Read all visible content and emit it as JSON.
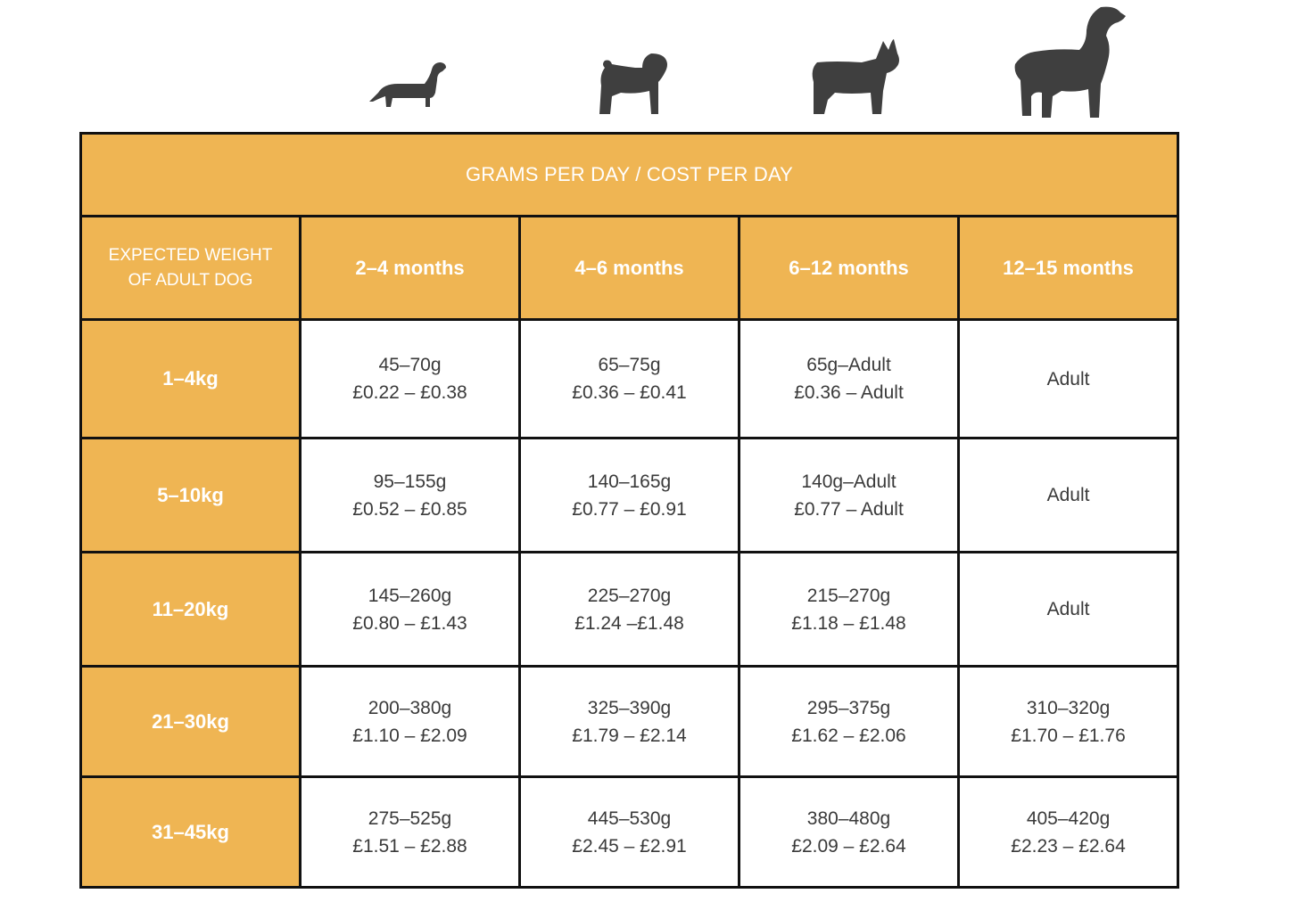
{
  "colors": {
    "accent": "#efb553",
    "border": "#111111",
    "icon": "#3f3f3f",
    "text": "#3a3a3a"
  },
  "icons": [
    "dachshund-icon",
    "pug-icon",
    "french-bulldog-icon",
    "spaniel-icon"
  ],
  "table": {
    "title": "GRAMS PER DAY / COST PER DAY",
    "weight_header_line1": "EXPECTED WEIGHT",
    "weight_header_line2": "OF ADULT DOG",
    "age_headers": [
      "2–4 months",
      "4–6 months",
      "6–12 months",
      "12–15 months"
    ],
    "rows": [
      {
        "weight": "1–4kg",
        "cells": [
          {
            "grams": "45–70g",
            "cost": "£0.22 – £0.38"
          },
          {
            "grams": "65–75g",
            "cost": "£0.36 – £0.41"
          },
          {
            "grams": "65g–Adult",
            "cost": "£0.36 – Adult"
          },
          {
            "grams": "Adult",
            "cost": ""
          }
        ]
      },
      {
        "weight": "5–10kg",
        "cells": [
          {
            "grams": "95–155g",
            "cost": "£0.52 – £0.85"
          },
          {
            "grams": "140–165g",
            "cost": "£0.77 – £0.91"
          },
          {
            "grams": "140g–Adult",
            "cost": "£0.77 – Adult"
          },
          {
            "grams": "Adult",
            "cost": ""
          }
        ]
      },
      {
        "weight": "11–20kg",
        "cells": [
          {
            "grams": "145–260g",
            "cost": "£0.80 – £1.43"
          },
          {
            "grams": "225–270g",
            "cost": "£1.24 –£1.48"
          },
          {
            "grams": "215–270g",
            "cost": "£1.18 – £1.48"
          },
          {
            "grams": "Adult",
            "cost": ""
          }
        ]
      },
      {
        "weight": "21–30kg",
        "cells": [
          {
            "grams": "200–380g",
            "cost": "£1.10 – £2.09"
          },
          {
            "grams": "325–390g",
            "cost": "£1.79 – £2.14"
          },
          {
            "grams": "295–375g",
            "cost": "£1.62 – £2.06"
          },
          {
            "grams": "310–320g",
            "cost": "£1.70 – £1.76"
          }
        ]
      },
      {
        "weight": "31–45kg",
        "cells": [
          {
            "grams": "275–525g",
            "cost": "£1.51 – £2.88"
          },
          {
            "grams": "445–530g",
            "cost": "£2.45 – £2.91"
          },
          {
            "grams": "380–480g",
            "cost": "£2.09 – £2.64"
          },
          {
            "grams": "405–420g",
            "cost": "£2.23 – £2.64"
          }
        ]
      }
    ]
  }
}
